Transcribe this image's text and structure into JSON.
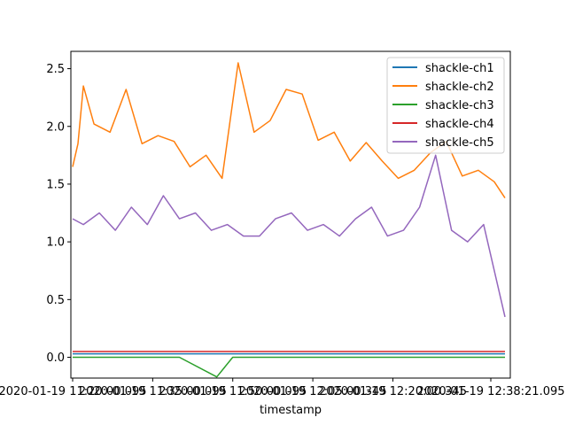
{
  "chart_data": {
    "type": "line",
    "title": "",
    "xlabel": "timestamp",
    "ylabel": "",
    "ylim": [
      -0.18,
      2.65
    ],
    "yticks": [
      0.0,
      0.5,
      1.0,
      1.5,
      2.0,
      2.5
    ],
    "ytick_labels": [
      "0.0",
      "0.5",
      "1.0",
      "1.5",
      "2.0",
      "2.5"
    ],
    "x_domain": [
      "2020-01-19 11:19:40",
      "2020-01-19 12:42:00"
    ],
    "x_ticks": [
      "2020-01-19 11:20:00",
      "2020-01-19 11:35:00",
      "2020-01-19 11:50:00",
      "2020-01-19 12:05:00",
      "2020-01-19 12:20:00",
      "2020-01-19 12:38:21"
    ],
    "xtick_labels": [
      "2020-01-19 11:20:00.095",
      "2020-01-19 11:35:00.095",
      "2020-01-19 11:50:00.095",
      "2020-01-19 12:05:00.345",
      "2020-01-19 12:20:00.345",
      "2020-01-19 12:38:21.095"
    ],
    "legend_position": "top-right",
    "grid": false,
    "series": [
      {
        "name": "shackle-ch1",
        "color": "#1f77b4",
        "x": [
          "2020-01-19 11:20:00",
          "2020-01-19 11:35:00",
          "2020-01-19 11:50:00",
          "2020-01-19 12:05:00",
          "2020-01-19 12:20:00",
          "2020-01-19 12:41:00"
        ],
        "y": [
          0.03,
          0.03,
          0.03,
          0.03,
          0.03,
          0.03
        ]
      },
      {
        "name": "shackle-ch2",
        "color": "#ff7f0e",
        "x": [
          "2020-01-19 11:20:00",
          "2020-01-19 11:21:00",
          "2020-01-19 11:22:00",
          "2020-01-19 11:24:00",
          "2020-01-19 11:27:00",
          "2020-01-19 11:30:00",
          "2020-01-19 11:33:00",
          "2020-01-19 11:36:00",
          "2020-01-19 11:39:00",
          "2020-01-19 11:42:00",
          "2020-01-19 11:45:00",
          "2020-01-19 11:48:00",
          "2020-01-19 11:51:00",
          "2020-01-19 11:54:00",
          "2020-01-19 11:57:00",
          "2020-01-19 12:00:00",
          "2020-01-19 12:03:00",
          "2020-01-19 12:06:00",
          "2020-01-19 12:09:00",
          "2020-01-19 12:12:00",
          "2020-01-19 12:15:00",
          "2020-01-19 12:18:00",
          "2020-01-19 12:21:00",
          "2020-01-19 12:24:00",
          "2020-01-19 12:27:00",
          "2020-01-19 12:30:00",
          "2020-01-19 12:33:00",
          "2020-01-19 12:36:00",
          "2020-01-19 12:39:00",
          "2020-01-19 12:41:00"
        ],
        "y": [
          1.65,
          1.85,
          2.35,
          2.02,
          1.95,
          2.32,
          1.85,
          1.92,
          1.87,
          1.65,
          1.75,
          1.55,
          2.55,
          1.95,
          2.05,
          2.32,
          2.28,
          1.88,
          1.95,
          1.7,
          1.86,
          1.7,
          1.55,
          1.62,
          1.77,
          1.87,
          1.57,
          1.62,
          1.52,
          1.38
        ]
      },
      {
        "name": "shackle-ch3",
        "color": "#2ca02c",
        "x": [
          "2020-01-19 11:20:00",
          "2020-01-19 11:30:00",
          "2020-01-19 11:40:00",
          "2020-01-19 11:47:00",
          "2020-01-19 11:50:00",
          "2020-01-19 12:00:00",
          "2020-01-19 12:10:00",
          "2020-01-19 12:20:00",
          "2020-01-19 12:30:00",
          "2020-01-19 12:41:00"
        ],
        "y": [
          0.0,
          0.0,
          0.0,
          -0.17,
          0.0,
          0.0,
          0.0,
          0.0,
          0.0,
          0.0
        ]
      },
      {
        "name": "shackle-ch4",
        "color": "#d62728",
        "x": [
          "2020-01-19 11:20:00",
          "2020-01-19 11:30:00",
          "2020-01-19 11:40:00",
          "2020-01-19 11:50:00",
          "2020-01-19 12:00:00",
          "2020-01-19 12:10:00",
          "2020-01-19 12:20:00",
          "2020-01-19 12:30:00",
          "2020-01-19 12:41:00"
        ],
        "y": [
          0.05,
          0.05,
          0.05,
          0.05,
          0.05,
          0.05,
          0.05,
          0.05,
          0.05
        ]
      },
      {
        "name": "shackle-ch5",
        "color": "#9467bd",
        "x": [
          "2020-01-19 11:20:00",
          "2020-01-19 11:22:00",
          "2020-01-19 11:25:00",
          "2020-01-19 11:28:00",
          "2020-01-19 11:31:00",
          "2020-01-19 11:34:00",
          "2020-01-19 11:37:00",
          "2020-01-19 11:40:00",
          "2020-01-19 11:43:00",
          "2020-01-19 11:46:00",
          "2020-01-19 11:49:00",
          "2020-01-19 11:52:00",
          "2020-01-19 11:55:00",
          "2020-01-19 11:58:00",
          "2020-01-19 12:01:00",
          "2020-01-19 12:04:00",
          "2020-01-19 12:07:00",
          "2020-01-19 12:10:00",
          "2020-01-19 12:13:00",
          "2020-01-19 12:16:00",
          "2020-01-19 12:19:00",
          "2020-01-19 12:22:00",
          "2020-01-19 12:25:00",
          "2020-01-19 12:28:00",
          "2020-01-19 12:31:00",
          "2020-01-19 12:34:00",
          "2020-01-19 12:37:00",
          "2020-01-19 12:41:00"
        ],
        "y": [
          1.2,
          1.15,
          1.25,
          1.1,
          1.3,
          1.15,
          1.4,
          1.2,
          1.25,
          1.1,
          1.15,
          1.05,
          1.05,
          1.2,
          1.25,
          1.1,
          1.15,
          1.05,
          1.2,
          1.3,
          1.05,
          1.1,
          1.3,
          1.75,
          1.1,
          1.0,
          1.15,
          0.35
        ]
      }
    ]
  }
}
